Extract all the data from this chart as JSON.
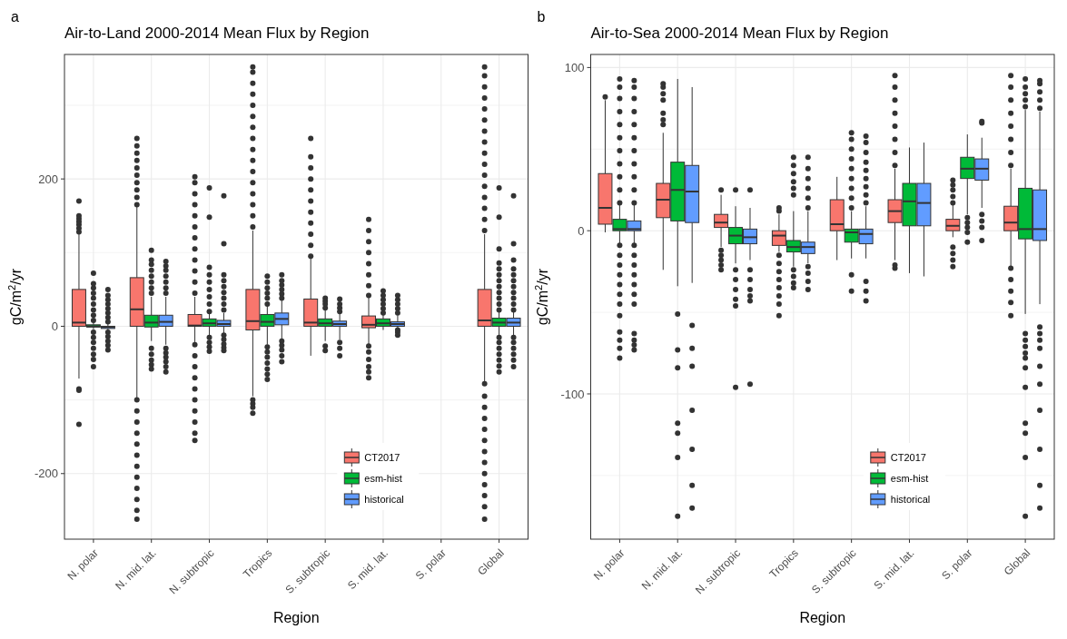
{
  "chart_data": [
    {
      "type": "box",
      "title": "Air-to-Land 2000-2014 Mean Flux by Region",
      "annotations": [
        "a"
      ],
      "xlabel": "Region",
      "ylabel": "gC/m$^{2}$/yr",
      "categories": [
        "N. polar",
        "N. mid. lat.",
        "N. subtropic",
        "Tropics",
        "S. subtropic",
        "S. mid. lat.",
        "S. polar",
        "Global"
      ],
      "ylim": [
        -289,
        369
      ],
      "yticks": [
        -200,
        {
          "value": -100,
          "label": null
        },
        0,
        {
          "value": 100,
          "label": null
        },
        200,
        {
          "value": 300,
          "label": null
        }
      ],
      "grid": true,
      "legend": "bottom right",
      "series": [
        {
          "name": "CT2017",
          "color": "#f8766d",
          "boxes": [
            {
              "low": -71,
              "q1": 0,
              "median": 5,
              "q3": 50,
              "high": 125,
              "outliers": [
                128,
                133,
                138,
                142,
                146,
                150,
                170,
                -85,
                -87,
                -133
              ]
            },
            {
              "low": -98,
              "q1": 0,
              "median": 23,
              "q3": 66,
              "high": 162,
              "outliers": [
                165,
                175,
                185,
                195,
                205,
                215,
                225,
                235,
                245,
                255,
                -100,
                -115,
                -130,
                -145,
                -160,
                -175,
                -190,
                -205,
                -220,
                -235,
                -250,
                -262
              ]
            },
            {
              "low": -22,
              "q1": 0,
              "median": 1,
              "q3": 16,
              "high": 40,
              "outliers": [
                45,
                60,
                75,
                90,
                105,
                120,
                135,
                150,
                165,
                180,
                195,
                203,
                -25,
                -40,
                -55,
                -70,
                -85,
                -100,
                -115,
                -130,
                -145,
                -155
              ]
            },
            {
              "low": -95,
              "q1": -5,
              "median": 7,
              "q3": 50,
              "high": 130,
              "outliers": [
                135,
                150,
                165,
                180,
                195,
                210,
                225,
                240,
                255,
                270,
                285,
                300,
                315,
                330,
                345,
                352,
                -100,
                -105,
                -110,
                -118
              ]
            },
            {
              "low": -40,
              "q1": 0,
              "median": 5,
              "q3": 37,
              "high": 92,
              "outliers": [
                95,
                110,
                125,
                140,
                155,
                170,
                185,
                200,
                215,
                230,
                255
              ]
            },
            {
              "low": -25,
              "q1": -2,
              "median": 2,
              "q3": 14,
              "high": 40,
              "outliers": [
                42,
                55,
                70,
                85,
                100,
                115,
                130,
                145,
                -27,
                -35,
                -45,
                -55,
                -62,
                -70
              ]
            },
            null,
            {
              "low": -75,
              "q1": 0,
              "median": 8,
              "q3": 50,
              "high": 125,
              "outliers": [
                130,
                145,
                160,
                175,
                190,
                205,
                220,
                235,
                250,
                265,
                280,
                295,
                310,
                325,
                340,
                352,
                -78,
                -95,
                -110,
                -125,
                -140,
                -155,
                -170,
                -185,
                -200,
                -215,
                -230,
                -245,
                -262
              ]
            }
          ]
        },
        {
          "name": "esm-hist",
          "color": "#00ba38",
          "boxes": [
            {
              "low": -4,
              "q1": -1,
              "median": 0,
              "q3": 2,
              "high": 5,
              "outliers": [
                8,
                15,
                22,
                30,
                38,
                45,
                52,
                58,
                72,
                -8,
                -15,
                -22,
                -30,
                -38,
                -45,
                -55
              ]
            },
            {
              "low": -20,
              "q1": -1,
              "median": 5,
              "q3": 15,
              "high": 40,
              "outliers": [
                45,
                52,
                60,
                68,
                76,
                84,
                90,
                103,
                -30,
                -38,
                -46,
                -52,
                -58
              ]
            },
            {
              "low": -12,
              "q1": 0,
              "median": 4,
              "q3": 10,
              "high": 18,
              "outliers": [
                20,
                30,
                40,
                50,
                60,
                70,
                80,
                148,
                188,
                -15,
                -22,
                -28,
                -34
              ]
            },
            {
              "low": -25,
              "q1": 0,
              "median": 6,
              "q3": 16,
              "high": 28,
              "outliers": [
                30,
                38,
                45,
                52,
                60,
                68,
                -28,
                -35,
                -42,
                -50,
                -58,
                -65,
                -72
              ]
            },
            {
              "low": -20,
              "q1": 0,
              "median": 4,
              "q3": 10,
              "high": 22,
              "outliers": [
                25,
                30,
                34,
                38,
                -27,
                -33
              ]
            },
            {
              "low": -5,
              "q1": 0,
              "median": 4,
              "q3": 10,
              "high": 16,
              "outliers": [
                18,
                24,
                30,
                36,
                42,
                48
              ]
            },
            null,
            {
              "low": -12,
              "q1": 0,
              "median": 5,
              "q3": 11,
              "high": 20,
              "outliers": [
                22,
                30,
                38,
                46,
                54,
                62,
                70,
                78,
                86,
                105,
                148,
                188,
                -15,
                -22,
                -30,
                -38,
                -46,
                -54,
                -62
              ]
            }
          ]
        },
        {
          "name": "historical",
          "color": "#619cff",
          "boxes": [
            {
              "low": -6,
              "q1": -3,
              "median": -1,
              "q3": 0,
              "high": 3,
              "outliers": [
                6,
                12,
                18,
                24,
                30,
                36,
                42,
                50,
                -8,
                -14,
                -20,
                -26,
                -32
              ]
            },
            {
              "low": -25,
              "q1": 0,
              "median": 6,
              "q3": 15,
              "high": 40,
              "outliers": [
                45,
                52,
                60,
                68,
                76,
                82,
                88,
                -30,
                -36,
                -42,
                -48,
                -55,
                -62
              ]
            },
            {
              "low": -10,
              "q1": 0,
              "median": 3,
              "q3": 8,
              "high": 18,
              "outliers": [
                22,
                30,
                38,
                46,
                54,
                62,
                70,
                112,
                177,
                -12,
                -18,
                -24,
                -29,
                -33
              ]
            },
            {
              "low": -18,
              "q1": 2,
              "median": 10,
              "q3": 18,
              "high": 35,
              "outliers": [
                38,
                44,
                50,
                56,
                62,
                70,
                -20,
                -26,
                -32,
                -40,
                -48
              ]
            },
            {
              "low": -18,
              "q1": 0,
              "median": 3,
              "q3": 7,
              "high": 18,
              "outliers": [
                20,
                25,
                30,
                37,
                -22,
                -30,
                -40
              ]
            },
            {
              "low": -4,
              "q1": 0,
              "median": 3,
              "q3": 6,
              "high": 15,
              "outliers": [
                18,
                24,
                30,
                36,
                42,
                -5,
                -8,
                -12
              ]
            },
            null,
            {
              "low": -12,
              "q1": 0,
              "median": 5,
              "q3": 11,
              "high": 20,
              "outliers": [
                22,
                30,
                38,
                46,
                54,
                62,
                70,
                78,
                90,
                112,
                177,
                -15,
                -22,
                -30,
                -38,
                -46,
                -55
              ]
            }
          ]
        }
      ]
    },
    {
      "type": "box",
      "title": "Air-to-Sea 2000-2014 Mean Flux by Region",
      "annotations": [
        "b"
      ],
      "xlabel": "Region",
      "ylabel": "gC/m$^{2}$/yr",
      "categories": [
        "N. polar",
        "N. mid. lat.",
        "N. subtropic",
        "Tropics",
        "S. subtropic",
        "S. mid. lat.",
        "S. polar",
        "Global"
      ],
      "ylim": [
        -189,
        108
      ],
      "yticks": [
        {
          "value": -150,
          "label": null
        },
        -100,
        {
          "value": -50,
          "label": null
        },
        0,
        {
          "value": 50,
          "label": null
        },
        100
      ],
      "grid": true,
      "legend": "bottom right",
      "series": [
        {
          "name": "CT2017",
          "color": "#f8766d",
          "boxes": [
            {
              "low": -1,
              "q1": 4,
              "median": 14,
              "q3": 35,
              "high": 80,
              "outliers": [
                82
              ]
            },
            {
              "low": -24,
              "q1": 8,
              "median": 19,
              "q3": 29,
              "high": 60,
              "outliers": [
                65,
                68,
                72,
                80,
                84,
                88,
                90
              ]
            },
            {
              "low": -10,
              "q1": 2,
              "median": 5,
              "q3": 10,
              "high": 22,
              "outliers": [
                25,
                -12,
                -15,
                -18,
                -21,
                -24
              ]
            },
            {
              "low": -13,
              "q1": -9,
              "median": -3,
              "q3": 0,
              "high": 10,
              "outliers": [
                12,
                14,
                -15,
                -20,
                -25,
                -30,
                -35,
                -40,
                -45,
                -52
              ]
            },
            {
              "low": -18,
              "q1": 0,
              "median": 4,
              "q3": 19,
              "high": 33
            },
            {
              "low": -18,
              "q1": 5,
              "median": 12,
              "q3": 19,
              "high": 38,
              "outliers": [
                40,
                48,
                56,
                64,
                72,
                80,
                88,
                95,
                -21,
                -23
              ]
            },
            {
              "low": -4,
              "q1": 0,
              "median": 3,
              "q3": 7,
              "high": 16,
              "outliers": [
                17,
                21,
                25,
                28,
                31,
                -10,
                -14,
                -18,
                -22
              ]
            },
            {
              "low": -22,
              "q1": 0,
              "median": 5,
              "q3": 15,
              "high": 38,
              "outliers": [
                40,
                48,
                56,
                64,
                72,
                80,
                88,
                95,
                -23,
                -30,
                -37,
                -44,
                -52
              ]
            }
          ]
        },
        {
          "name": "esm-hist",
          "color": "#00ba38",
          "boxes": [
            {
              "low": -8,
              "q1": 0,
              "median": 1,
              "q3": 7,
              "high": 16,
              "outliers": [
                17,
                25,
                33,
                41,
                49,
                57,
                65,
                73,
                81,
                88,
                93,
                -9,
                -15,
                -21,
                -27,
                -33,
                -39,
                -45,
                -52,
                -62,
                -67,
                -72,
                -78
              ]
            },
            {
              "low": -34,
              "q1": 6,
              "median": 25,
              "q3": 42,
              "high": 93,
              "outliers": [
                -51,
                -73,
                -84,
                -118,
                -124,
                -139,
                -175
              ]
            },
            {
              "low": -20,
              "q1": -8,
              "median": -3,
              "q3": 2,
              "high": 15,
              "outliers": [
                25,
                -24,
                -30,
                -36,
                -42,
                -46,
                -96
              ]
            },
            {
              "low": -22,
              "q1": -13,
              "median": -10,
              "q3": -6,
              "high": 12,
              "outliers": [
                22,
                26,
                30,
                35,
                40,
                45,
                -24,
                -28,
                -32,
                -35
              ]
            },
            {
              "low": -17,
              "q1": -7,
              "median": -1,
              "q3": 1,
              "high": 12,
              "outliers": [
                14,
                20,
                26,
                32,
                38,
                44,
                50,
                56,
                60,
                -27,
                -37
              ]
            },
            {
              "low": -26,
              "q1": 3,
              "median": 18,
              "q3": 29,
              "high": 51
            },
            {
              "low": 10,
              "q1": 32,
              "median": 38,
              "q3": 45,
              "high": 59,
              "outliers": [
                8,
                5,
                2,
                -1,
                -7
              ]
            },
            {
              "low": -51,
              "q1": -5,
              "median": 1,
              "q3": 26,
              "high": 74,
              "outliers": [
                76,
                80,
                84,
                88,
                93,
                -63,
                -67,
                -71,
                -75,
                -78,
                -84,
                -96,
                -118,
                -124,
                -139,
                -175
              ]
            }
          ]
        },
        {
          "name": "historical",
          "color": "#619cff",
          "boxes": [
            {
              "low": -8,
              "q1": 0,
              "median": 1,
              "q3": 6,
              "high": 16,
              "outliers": [
                17,
                25,
                33,
                41,
                49,
                57,
                65,
                73,
                81,
                88,
                92,
                -9,
                -15,
                -21,
                -27,
                -33,
                -39,
                -45,
                -63,
                -67,
                -70,
                -73
              ]
            },
            {
              "low": -32,
              "q1": 5,
              "median": 24,
              "q3": 40,
              "high": 88,
              "outliers": [
                -58,
                -72,
                -83,
                -110,
                -134,
                -156,
                -170
              ]
            },
            {
              "low": -18,
              "q1": -8,
              "median": -4,
              "q3": 1,
              "high": 14,
              "outliers": [
                25,
                -24,
                -30,
                -36,
                -40,
                -43,
                -94
              ]
            },
            {
              "low": -20,
              "q1": -14,
              "median": -10,
              "q3": -7,
              "high": 12,
              "outliers": [
                14,
                20,
                26,
                32,
                38,
                45,
                -22,
                -26,
                -31,
                -36
              ]
            },
            {
              "low": -17,
              "q1": -8,
              "median": -2,
              "q3": 1,
              "high": 15,
              "outliers": [
                17,
                22,
                27,
                32,
                37,
                42,
                48,
                54,
                58,
                -31,
                -37,
                -43
              ]
            },
            {
              "low": -28,
              "q1": 3,
              "median": 17,
              "q3": 29,
              "high": 54
            },
            {
              "low": 14,
              "q1": 31,
              "median": 38,
              "q3": 44,
              "high": 57,
              "outliers": [
                66,
                67,
                10,
                6,
                2,
                -6
              ]
            },
            {
              "low": -45,
              "q1": -6,
              "median": 1,
              "q3": 25,
              "high": 73,
              "outliers": [
                75,
                80,
                85,
                90,
                92,
                -59,
                -63,
                -67,
                -72,
                -83,
                -94,
                -110,
                -134,
                -156,
                -170
              ]
            }
          ]
        }
      ]
    }
  ]
}
